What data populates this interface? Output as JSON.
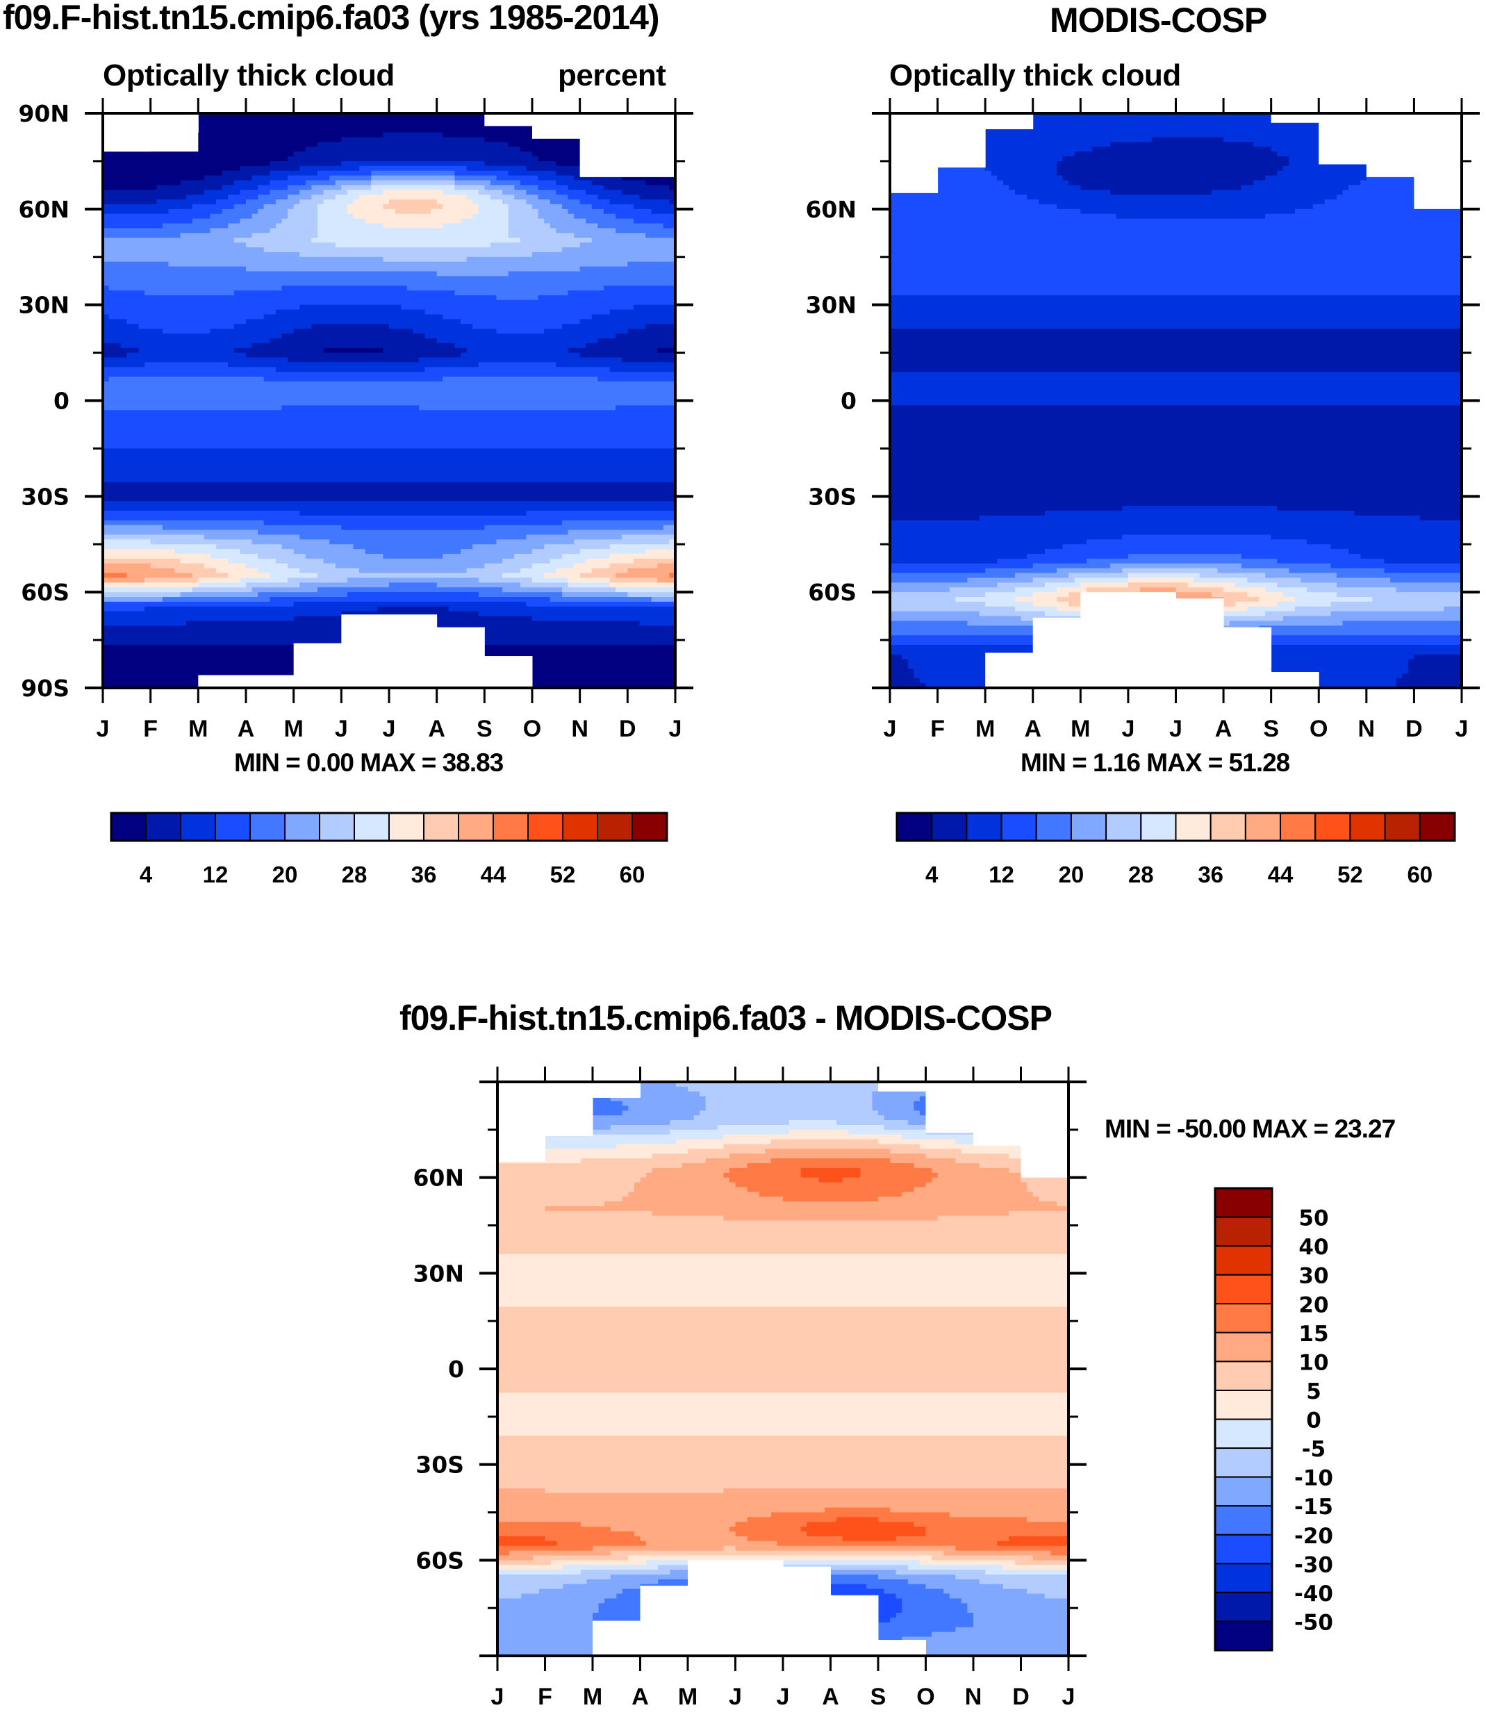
{
  "figure": {
    "panel_a": {
      "title": "f09.F-hist.tn15.cmip6.fa03 (yrs 1985-2014)",
      "left_label": "Optically thick cloud",
      "right_label": "percent",
      "minmax": "MIN =   0.00 MAX =  38.83"
    },
    "panel_b": {
      "title": "MODIS-COSP",
      "left_label": "Optically thick cloud",
      "minmax": "MIN =   1.16 MAX =  51.28"
    },
    "panel_c": {
      "title": "f09.F-hist.tn15.cmip6.fa03 - MODIS-COSP",
      "minmax": "MIN = -50.00 MAX =  23.27"
    }
  },
  "chart_data": [
    {
      "type": "heatmap",
      "title": "f09.F-hist.tn15.cmip6.fa03 (yrs 1985-2014)",
      "subtitle_left": "Optically thick cloud",
      "subtitle_right": "percent",
      "xlabel": "",
      "ylabel": "",
      "x_ticks": [
        "J",
        "F",
        "M",
        "A",
        "M",
        "J",
        "J",
        "A",
        "S",
        "O",
        "N",
        "D",
        "J"
      ],
      "y_ticks": [
        "90N",
        "60N",
        "30N",
        "0",
        "30S",
        "60S",
        "90S"
      ],
      "ylim": [
        -90,
        90
      ],
      "min": 0.0,
      "max": 38.83,
      "colorbar": {
        "orientation": "horizontal",
        "levels": [
          4,
          8,
          12,
          16,
          20,
          24,
          28,
          32,
          36,
          40,
          44,
          48,
          52,
          56,
          60
        ],
        "tick_labels": [
          "4",
          "12",
          "20",
          "28",
          "36",
          "44",
          "52",
          "60"
        ],
        "colors": [
          "#000080",
          "#0019aa",
          "#0033dd",
          "#1a4dff",
          "#4278ff",
          "#80a8ff",
          "#b3ccff",
          "#d6e8ff",
          "#ffeadb",
          "#ffccb2",
          "#ffaa82",
          "#ff7a45",
          "#ff521a",
          "#e03300",
          "#b82200",
          "#880000"
        ]
      },
      "features": {
        "zonal_bands": [
          {
            "lat": 75,
            "value": 3
          },
          {
            "lat": 60,
            "value": 20
          },
          {
            "lat": 50,
            "value": 26
          },
          {
            "lat": 35,
            "value": 16
          },
          {
            "lat": 15,
            "value": 6
          },
          {
            "lat": 5,
            "value": 18
          },
          {
            "lat": -10,
            "value": 14
          },
          {
            "lat": -30,
            "value": 6
          },
          {
            "lat": -45,
            "value": 24
          },
          {
            "lat": -55,
            "value": 32
          },
          {
            "lat": -65,
            "value": 10
          },
          {
            "lat": -80,
            "value": 2
          }
        ],
        "peak_nh": {
          "month": 6.5,
          "lat": 64,
          "value": 36
        },
        "peak_sh": {
          "month": 0,
          "lat": -55,
          "value": 37
        }
      }
    },
    {
      "type": "heatmap",
      "title": "MODIS-COSP",
      "subtitle_left": "Optically thick cloud",
      "x_ticks": [
        "J",
        "F",
        "M",
        "A",
        "M",
        "J",
        "J",
        "A",
        "S",
        "O",
        "N",
        "D",
        "J"
      ],
      "y_ticks": [
        "60N",
        "30N",
        "0",
        "30S",
        "60S"
      ],
      "ylim": [
        -90,
        90
      ],
      "min": 1.16,
      "max": 51.28,
      "colorbar": {
        "orientation": "horizontal",
        "levels": [
          4,
          8,
          12,
          16,
          20,
          24,
          28,
          32,
          36,
          40,
          44,
          48,
          52,
          56,
          60
        ],
        "tick_labels": [
          "4",
          "12",
          "20",
          "28",
          "36",
          "44",
          "52",
          "60"
        ],
        "colors": [
          "#000080",
          "#0019aa",
          "#0033dd",
          "#1a4dff",
          "#4278ff",
          "#80a8ff",
          "#b3ccff",
          "#d6e8ff",
          "#ffeadb",
          "#ffccb2",
          "#ffaa82",
          "#ff7a45",
          "#ff521a",
          "#e03300",
          "#b82200",
          "#880000"
        ]
      },
      "features": {
        "zonal_bands": [
          {
            "lat": 75,
            "value": 10
          },
          {
            "lat": 55,
            "value": 14
          },
          {
            "lat": 35,
            "value": 13
          },
          {
            "lat": 15,
            "value": 5
          },
          {
            "lat": 5,
            "value": 10
          },
          {
            "lat": -15,
            "value": 4
          },
          {
            "lat": -35,
            "value": 8
          },
          {
            "lat": -50,
            "value": 13
          },
          {
            "lat": -62,
            "value": 28
          },
          {
            "lat": -80,
            "value": 8
          }
        ],
        "peak_sh": {
          "month": 5.5,
          "lat": -62,
          "value": 44
        }
      }
    },
    {
      "type": "heatmap",
      "title": "f09.F-hist.tn15.cmip6.fa03 - MODIS-COSP",
      "x_ticks": [
        "J",
        "F",
        "M",
        "A",
        "M",
        "J",
        "J",
        "A",
        "S",
        "O",
        "N",
        "D",
        "J"
      ],
      "y_ticks": [
        "60N",
        "30N",
        "0",
        "30S",
        "60S"
      ],
      "ylim": [
        -90,
        90
      ],
      "min": -50.0,
      "max": 23.27,
      "colorbar": {
        "orientation": "vertical",
        "levels": [
          -50,
          -40,
          -30,
          -20,
          -15,
          -10,
          -5,
          0,
          5,
          10,
          15,
          20,
          30,
          40,
          50
        ],
        "tick_labels": [
          "50",
          "40",
          "30",
          "20",
          "15",
          "10",
          "5",
          "0",
          "-5",
          "-10",
          "-15",
          "-20",
          "-30",
          "-40",
          "-50"
        ],
        "colors": [
          "#000080",
          "#0019aa",
          "#0033dd",
          "#1a4dff",
          "#4278ff",
          "#80a8ff",
          "#b3ccff",
          "#d6e8ff",
          "#ffeadb",
          "#ffccb2",
          "#ffaa82",
          "#ff7a45",
          "#ff521a",
          "#e03300",
          "#b82200",
          "#880000"
        ]
      },
      "features": {
        "zonal_bands": [
          {
            "lat": 78,
            "value": -8
          },
          {
            "lat": 62,
            "value": 8
          },
          {
            "lat": 50,
            "value": 10
          },
          {
            "lat": 30,
            "value": 3
          },
          {
            "lat": 5,
            "value": 8
          },
          {
            "lat": -15,
            "value": 3
          },
          {
            "lat": -45,
            "value": 12
          },
          {
            "lat": -55,
            "value": 14
          },
          {
            "lat": -65,
            "value": -6
          },
          {
            "lat": -80,
            "value": -12
          }
        ],
        "peak_nh": {
          "month": 7,
          "lat": 63,
          "value": 21
        },
        "peak_sh": {
          "month": 0,
          "lat": -55,
          "value": 22
        }
      }
    }
  ]
}
